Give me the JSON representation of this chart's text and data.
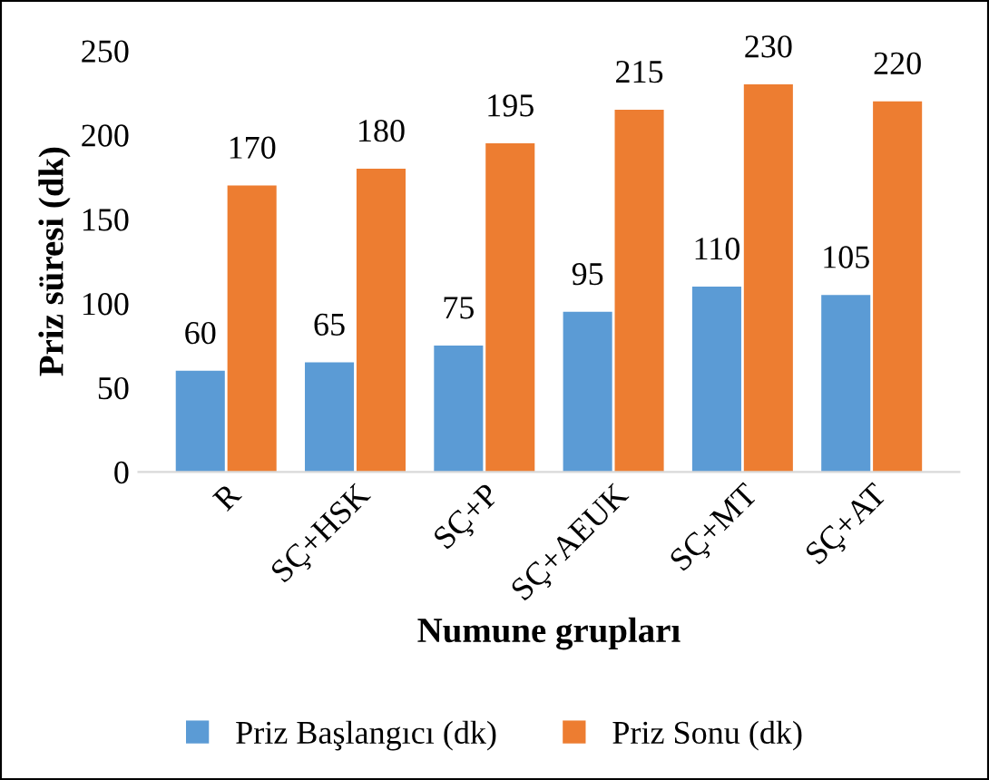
{
  "chart_data": {
    "type": "bar",
    "xlabel": "Numune grupları",
    "ylabel": "Priz süresi (dk)",
    "categories": [
      "R",
      "SÇ+HSK",
      "SÇ+P",
      "SÇ+AEUK",
      "SÇ+MT",
      "SÇ+AT"
    ],
    "series": [
      {
        "name": "Priz Başlangıcı (dk)",
        "color": "#5b9bd5",
        "values": [
          60,
          65,
          75,
          95,
          110,
          105
        ]
      },
      {
        "name": "Priz Sonu (dk)",
        "color": "#ed7d31",
        "values": [
          170,
          180,
          195,
          215,
          230,
          220
        ]
      }
    ],
    "ylim": [
      0,
      250
    ],
    "yticks": [
      0,
      50,
      100,
      150,
      200,
      250
    ],
    "data_labels": true,
    "legend": "bottom",
    "grid": false
  }
}
